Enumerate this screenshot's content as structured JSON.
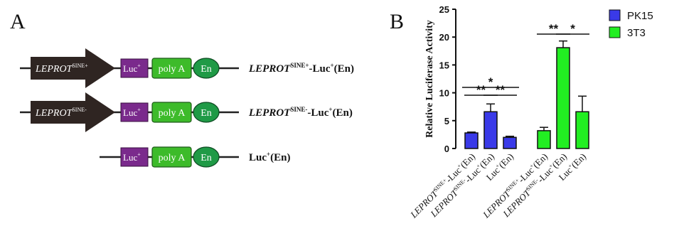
{
  "panel_a": {
    "label": "A",
    "constructs": [
      {
        "promoter": {
          "name": "LEPROT",
          "sup": "SINE+"
        },
        "elements": [
          "Luc",
          "poly A",
          "En"
        ],
        "luc_sup": "+",
        "name": {
          "gene": "LEPROT",
          "sup": "SINE+",
          "rest": "-Luc",
          "luc_sup": "+",
          "tail": "(En)"
        }
      },
      {
        "promoter": {
          "name": "LEPROT",
          "sup": "SINE-"
        },
        "elements": [
          "Luc",
          "poly A",
          "En"
        ],
        "luc_sup": "+",
        "name": {
          "gene": "LEPROT",
          "sup": "SINE-",
          "rest": "-Luc",
          "luc_sup": "+",
          "tail": "(En)"
        }
      },
      {
        "promoter": null,
        "elements": [
          "Luc",
          "poly A",
          "En"
        ],
        "luc_sup": "+",
        "name": {
          "gene": "",
          "sup": "",
          "rest": "Luc",
          "luc_sup": "+",
          "tail": "(En)"
        }
      }
    ],
    "colors": {
      "promoter": "#2f2522",
      "luc": "#7a2a8c",
      "polya": "#3dbb2a",
      "en": "#1f9a46"
    }
  },
  "panel_b": {
    "label": "B",
    "chart_data": {
      "type": "bar",
      "ylabel": "Relative Luciferase Activity",
      "ylim": [
        0,
        25
      ],
      "yticks": [
        0,
        5,
        10,
        15,
        20,
        25
      ],
      "legend_position": "top-right",
      "grid": false,
      "series": [
        {
          "name": "PK15",
          "color": "#3a3ae8",
          "values": [
            2.8,
            6.6,
            2.0
          ],
          "errors": [
            0.15,
            1.4,
            0.2
          ]
        },
        {
          "name": "3T3",
          "color": "#22ee22",
          "values": [
            3.2,
            18.1,
            6.6
          ],
          "errors": [
            0.6,
            1.2,
            2.8
          ]
        }
      ],
      "categories": [
        {
          "gene": "LEPROT",
          "sup": "SINE+",
          "rest": "-Luc",
          "luc_sup": "+",
          "tail": "(En)"
        },
        {
          "gene": "LEPROT",
          "sup": "SINE-",
          "rest": "-Luc",
          "luc_sup": "+",
          "tail": "(En)"
        },
        {
          "gene": "",
          "sup": "",
          "rest": "Luc",
          "luc_sup": "+",
          "tail": "(En)"
        }
      ],
      "significance": [
        {
          "series": 0,
          "from": 0,
          "to": 1,
          "label": "**"
        },
        {
          "series": 0,
          "from": 1,
          "to": 2,
          "label": "**"
        },
        {
          "series": 0,
          "from": 0,
          "to": 2,
          "label": "*"
        },
        {
          "series": 1,
          "from": 0,
          "to": 1,
          "label": "**"
        },
        {
          "series": 1,
          "from": 1,
          "to": 2,
          "label": "*"
        }
      ]
    }
  }
}
